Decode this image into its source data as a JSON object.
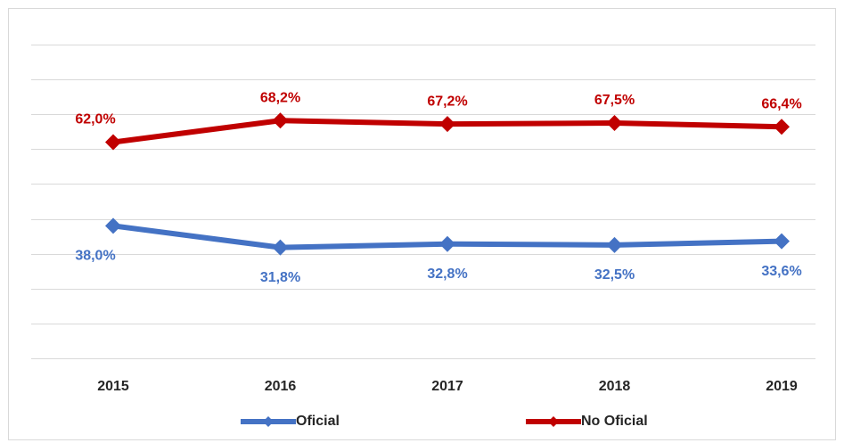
{
  "chart_data": {
    "type": "line",
    "categories": [
      "2015",
      "2016",
      "2017",
      "2018",
      "2019"
    ],
    "series": [
      {
        "name": "Oficial",
        "color": "#4472c4",
        "values": [
          38.0,
          31.8,
          32.8,
          32.5,
          33.6
        ],
        "value_labels": [
          "38,0%",
          "31,8%",
          "32,8%",
          "32,5%",
          "33,6%"
        ]
      },
      {
        "name": "No Oficial",
        "color": "#c00000",
        "values": [
          62.0,
          68.2,
          67.2,
          67.5,
          66.4
        ],
        "value_labels": [
          "62,0%",
          "68,2%",
          "67,2%",
          "67,5%",
          "66,4%"
        ]
      }
    ],
    "ylim": [
      0,
      90
    ],
    "yticks": [
      0,
      10,
      20,
      30,
      40,
      50,
      60,
      70,
      80,
      90
    ],
    "grid": true,
    "legend": "bottom"
  }
}
